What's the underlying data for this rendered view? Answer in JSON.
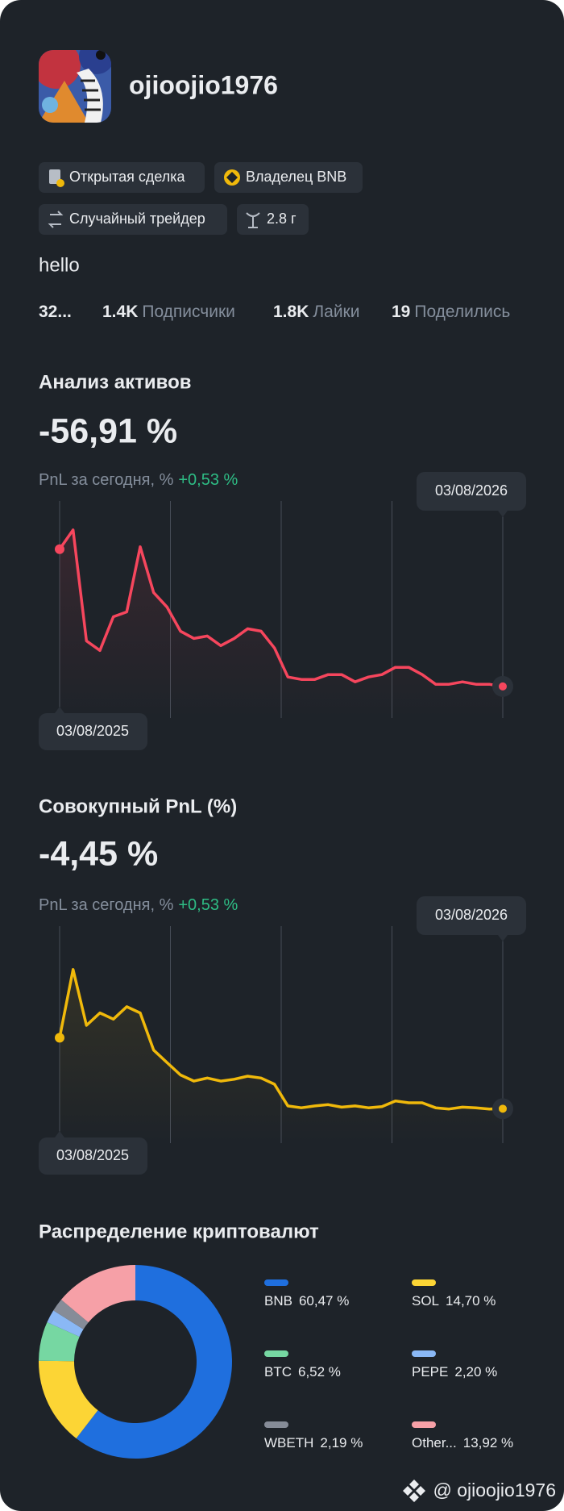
{
  "profile": {
    "username": "ojioojio1976",
    "bio": "hello"
  },
  "badges": [
    "Открытая сделка",
    "Владелец BNB",
    "Случайный трейдер",
    "2.8 г"
  ],
  "stats": [
    {
      "value": "32..."
    },
    {
      "value": "1.4K",
      "label": "Подписчики"
    },
    {
      "value": "1.8K",
      "label": "Лайки"
    },
    {
      "value": "19",
      "label": "Поделились"
    }
  ],
  "chart_data": [
    {
      "type": "line",
      "title": "Анализ активов",
      "headline": "-56,91 %",
      "subtitle": "PnL за сегодня, %",
      "change": "+0,53 %",
      "categories": [
        "03/08/2025",
        null,
        null,
        null,
        null,
        null,
        null,
        null,
        null,
        null,
        null,
        null,
        null,
        null,
        null,
        null,
        null,
        null,
        null,
        null,
        null,
        null,
        null,
        null,
        null,
        null,
        null,
        null,
        null,
        null,
        null,
        null,
        null,
        "03/08/2026"
      ],
      "series": [
        {
          "color": "#f6465d",
          "values": [
            0,
            8,
            -38,
            -42,
            -28,
            -26,
            1,
            -18,
            -24,
            -34,
            -37,
            -36,
            -40,
            -37,
            -33,
            -34,
            -41,
            -53,
            -54,
            -54,
            -52,
            -52,
            -55,
            -53,
            -52,
            -49,
            -49,
            -52,
            -56,
            -56,
            -55,
            -56,
            -56,
            -56.91
          ]
        }
      ],
      "ylim": [
        -70,
        20
      ]
    },
    {
      "type": "line",
      "title": "Совокупный PnL (%)",
      "headline": "-4,45 %",
      "subtitle": "PnL за сегодня, %",
      "change": "+0,53 %",
      "categories": [
        "03/08/2025",
        null,
        null,
        null,
        null,
        null,
        null,
        null,
        null,
        null,
        null,
        null,
        null,
        null,
        null,
        null,
        null,
        null,
        null,
        null,
        null,
        null,
        null,
        null,
        null,
        null,
        null,
        null,
        null,
        null,
        null,
        null,
        null,
        "03/08/2026"
      ],
      "series": [
        {
          "color": "#f0b90b",
          "values": [
            7,
            18,
            9,
            11,
            10,
            12,
            11,
            5,
            3,
            1,
            0,
            0.5,
            0,
            0.3,
            0.8,
            0.5,
            -0.5,
            -4,
            -4.3,
            -4,
            -3.8,
            -4.2,
            -4,
            -4.3,
            -4.1,
            -3.2,
            -3.5,
            -3.5,
            -4.3,
            -4.5,
            -4.2,
            -4.3,
            -4.5,
            -4.45
          ]
        }
      ],
      "ylim": [
        -10,
        25
      ]
    },
    {
      "type": "pie",
      "title": "Распределение криптовалют",
      "categories": [
        "BNB",
        "SOL",
        "BTC",
        "PEPE",
        "WBETH",
        "Other..."
      ],
      "values": [
        60.47,
        14.7,
        6.52,
        2.2,
        2.19,
        13.92
      ],
      "value_labels": [
        "60,47 %",
        "14,70 %",
        "6,52 %",
        "2,20 %",
        "2,19 %",
        "13,92 %"
      ],
      "colors": [
        "#1f6fde",
        "#fcd535",
        "#76d7a2",
        "#8ab8f5",
        "#868c98",
        "#f6a0a7"
      ]
    }
  ],
  "watermark": "@ ojioojio1976"
}
